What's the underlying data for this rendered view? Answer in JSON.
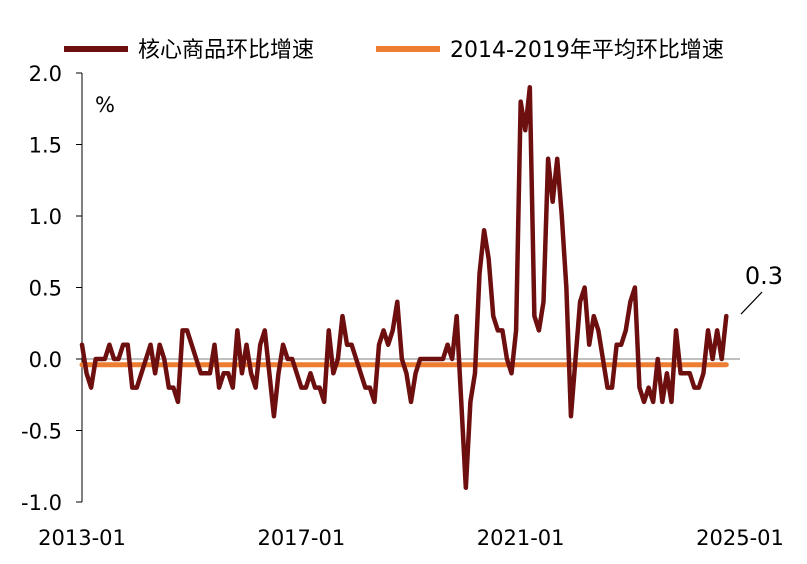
{
  "chart_data": {
    "type": "line",
    "unit": "%",
    "legend_position": "top",
    "grid": false,
    "ylim": [
      -1.0,
      2.0
    ],
    "y_ticks": [
      "2.0",
      "1.5",
      "1.0",
      "0.5",
      "0.0",
      "-0.5",
      "-1.0"
    ],
    "x_ticks": [
      "2013-01",
      "2017-01",
      "2021-01",
      "2025-01"
    ],
    "x_start": "2013-01",
    "x_end": "2025-01",
    "annotation": {
      "text": "0.3",
      "x": "2025-01",
      "y": 0.3
    },
    "series": [
      {
        "name": "核心商品环比增速",
        "color": "#6E0F0F",
        "values": [
          0.1,
          -0.1,
          -0.2,
          0.0,
          0.0,
          0.0,
          0.1,
          0.0,
          0.0,
          0.1,
          0.1,
          -0.2,
          -0.2,
          -0.1,
          0.0,
          0.1,
          -0.1,
          0.1,
          0.0,
          -0.2,
          -0.2,
          -0.3,
          0.2,
          0.2,
          0.1,
          0.0,
          -0.1,
          -0.1,
          -0.1,
          0.1,
          -0.2,
          -0.1,
          -0.1,
          -0.2,
          0.2,
          -0.1,
          0.1,
          -0.1,
          -0.2,
          0.1,
          0.2,
          -0.1,
          -0.4,
          -0.1,
          0.1,
          0.0,
          0.0,
          -0.1,
          -0.2,
          -0.2,
          -0.1,
          -0.2,
          -0.2,
          -0.3,
          0.2,
          -0.1,
          0.0,
          0.3,
          0.1,
          0.1,
          0.0,
          -0.1,
          -0.2,
          -0.2,
          -0.3,
          0.1,
          0.2,
          0.1,
          0.2,
          0.4,
          0.0,
          -0.1,
          -0.3,
          -0.1,
          0.0,
          0.0,
          0.0,
          0.0,
          0.0,
          0.0,
          0.1,
          0.0,
          0.3,
          -0.3,
          -0.9,
          -0.3,
          -0.1,
          0.6,
          0.9,
          0.7,
          0.3,
          0.2,
          0.2,
          0.0,
          -0.1,
          0.2,
          1.8,
          1.6,
          1.9,
          0.3,
          0.2,
          0.4,
          1.4,
          1.1,
          1.4,
          1.0,
          0.5,
          -0.4,
          0.0,
          0.4,
          0.5,
          0.1,
          0.3,
          0.2,
          0.0,
          -0.2,
          -0.2,
          0.1,
          0.1,
          0.2,
          0.4,
          0.5,
          -0.2,
          -0.3,
          -0.2,
          -0.3,
          0.0,
          -0.3,
          -0.1,
          -0.3,
          0.2,
          -0.1,
          -0.1,
          -0.1,
          -0.2,
          -0.2,
          -0.1,
          0.2,
          0.0,
          0.2,
          0.0,
          0.3
        ]
      },
      {
        "name": "2014-2019年平均环比增速",
        "color": "#ED7D31",
        "values": [
          -0.04,
          -0.04,
          -0.04,
          -0.04,
          -0.04,
          -0.04,
          -0.04,
          -0.04,
          -0.04,
          -0.04,
          -0.04,
          -0.04,
          -0.04,
          -0.04,
          -0.04,
          -0.04,
          -0.04,
          -0.04,
          -0.04,
          -0.04,
          -0.04,
          -0.04,
          -0.04,
          -0.04,
          -0.04,
          -0.04,
          -0.04,
          -0.04,
          -0.04,
          -0.04,
          -0.04,
          -0.04,
          -0.04,
          -0.04,
          -0.04,
          -0.04,
          -0.04,
          -0.04,
          -0.04,
          -0.04,
          -0.04,
          -0.04,
          -0.04,
          -0.04,
          -0.04,
          -0.04,
          -0.04,
          -0.04,
          -0.04,
          -0.04,
          -0.04,
          -0.04,
          -0.04,
          -0.04,
          -0.04,
          -0.04,
          -0.04,
          -0.04,
          -0.04,
          -0.04,
          -0.04,
          -0.04,
          -0.04,
          -0.04,
          -0.04,
          -0.04,
          -0.04,
          -0.04,
          -0.04,
          -0.04,
          -0.04,
          -0.04,
          -0.04,
          -0.04,
          -0.04,
          -0.04,
          -0.04,
          -0.04,
          -0.04,
          -0.04,
          -0.04,
          -0.04,
          -0.04,
          -0.04,
          -0.04,
          -0.04,
          -0.04,
          -0.04,
          -0.04,
          -0.04,
          -0.04,
          -0.04,
          -0.04,
          -0.04,
          -0.04,
          -0.04,
          -0.04,
          -0.04,
          -0.04,
          -0.04,
          -0.04,
          -0.04,
          -0.04,
          -0.04,
          -0.04,
          -0.04,
          -0.04,
          -0.04,
          -0.04,
          -0.04,
          -0.04,
          -0.04,
          -0.04,
          -0.04,
          -0.04,
          -0.04,
          -0.04,
          -0.04,
          -0.04,
          -0.04,
          -0.04,
          -0.04,
          -0.04,
          -0.04,
          -0.04,
          -0.04,
          -0.04,
          -0.04,
          -0.04,
          -0.04,
          -0.04,
          -0.04,
          -0.04,
          -0.04,
          -0.04,
          -0.04,
          -0.04,
          -0.04,
          -0.04,
          -0.04,
          -0.04,
          -0.04
        ]
      }
    ]
  }
}
